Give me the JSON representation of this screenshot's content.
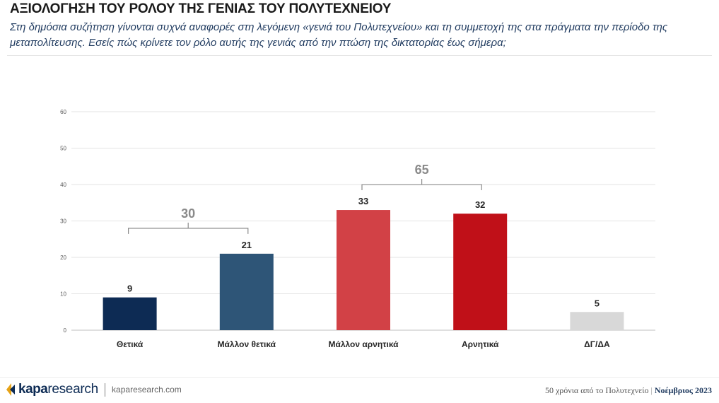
{
  "header": {
    "title": "ΑΞΙΟΛΟΓΗΣΗ ΤΟΥ ΡΟΛΟΥ ΤΗΣ ΓΕΝΙΑΣ ΤΟΥ ΠΟΛΥΤΕΧΝΕΙΟΥ",
    "subtitle": "Στη δημόσια συζήτηση γίνονται συχνά αναφορές στη λεγόμενη «γενιά του Πολυτεχνείου» και τη συμμετοχή της στα πράγματα την περίοδο της μεταπολίτευσης. Εσείς πώς κρίνετε τον ρόλο αυτής της γενιάς από την πτώση της δικτατορίας έως σήμερα;"
  },
  "chart_data": {
    "type": "bar",
    "title": "ΑΞΙΟΛΟΓΗΣΗ ΤΟΥ ΡΟΛΟΥ ΤΗΣ ΓΕΝΙΑΣ ΤΟΥ ΠΟΛΥΤΕΧΝΕΙΟΥ",
    "categories": [
      "Θετικά",
      "Μάλλον θετικά",
      "Μάλλον αρνητικά",
      "Αρνητικά",
      "ΔΓ/ΔΑ"
    ],
    "values": [
      9,
      21,
      33,
      32,
      5
    ],
    "colors": [
      "#0d2b54",
      "#2e5577",
      "#d24146",
      "#c01018",
      "#d8d8d8"
    ],
    "ylim": [
      0,
      60
    ],
    "yticks": [
      0,
      10,
      20,
      30,
      40,
      50,
      60
    ],
    "grid": true,
    "xlabel": "",
    "ylabel": "",
    "groups": [
      {
        "label": "30",
        "from": 0,
        "to": 1
      },
      {
        "label": "65",
        "from": 2,
        "to": 3
      }
    ]
  },
  "footer": {
    "brand_kapa": "kapa",
    "brand_research": "research",
    "url": "kaparesearch.com",
    "note": "50 χρόνια από το Πολυτεχνείο",
    "separator": "|",
    "date": "Νοέμβριος 2023"
  },
  "colors": {
    "navy": "#0d2b54",
    "gold": "#e6a317",
    "bracket": "#8a8a8a"
  }
}
